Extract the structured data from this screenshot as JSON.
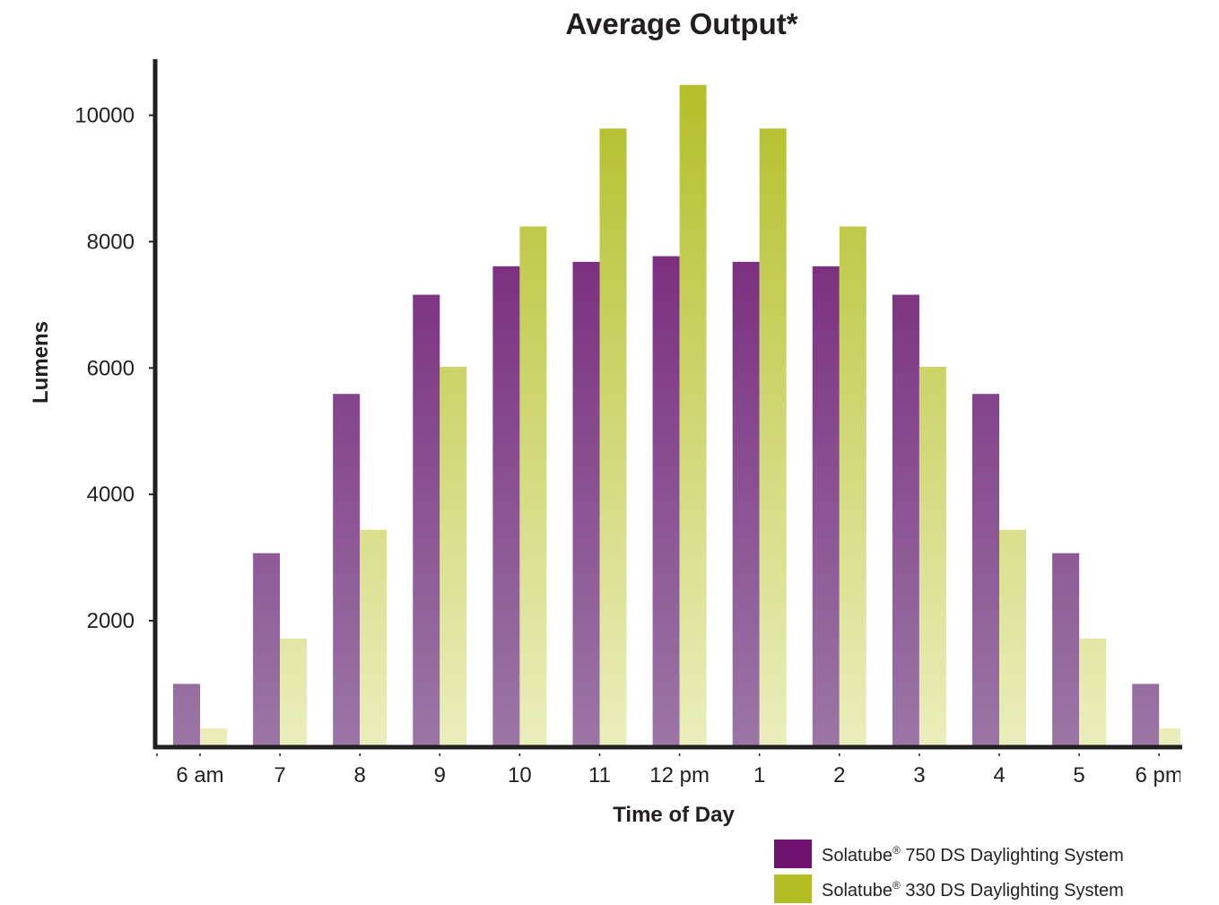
{
  "chart_data": {
    "type": "bar",
    "title": "Average Output*",
    "xlabel": "Time of Day",
    "ylabel": "Lumens",
    "categories": [
      "6 am",
      "7",
      "8",
      "9",
      "10",
      "11",
      "12 pm",
      "1",
      "2",
      "3",
      "4",
      "5",
      "6 pm"
    ],
    "ylim": [
      0,
      10800
    ],
    "yticks": [
      2000,
      4000,
      6000,
      8000,
      10000
    ],
    "grid": false,
    "legend_position": "bottom-right",
    "series": [
      {
        "name": "Solatube® 750 DS Daylighting System",
        "brand": "Solatube",
        "suffix": " 750 DS Daylighting System",
        "color": "#6e1470",
        "color_light": "#9b76a6",
        "values": [
          1000,
          3070,
          5590,
          7160,
          7610,
          7680,
          7770,
          7680,
          7610,
          7160,
          5590,
          3070,
          1000
        ]
      },
      {
        "name": "Solatube® 330 DS Daylighting System",
        "brand": "Solatube",
        "suffix": " 330 DS Daylighting System",
        "color": "#b2bd24",
        "color_light": "#ebeebc",
        "values": [
          300,
          1720,
          3440,
          6020,
          8240,
          9790,
          10480,
          9790,
          8240,
          6020,
          3440,
          1720,
          300
        ]
      }
    ]
  }
}
